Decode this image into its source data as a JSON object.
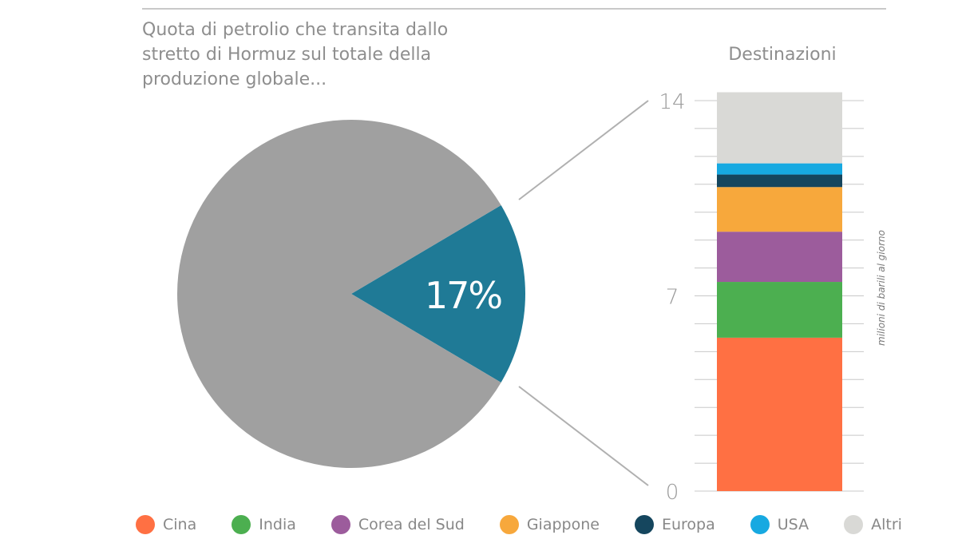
{
  "title_lines": [
    "Quota di petrolio che transita dallo",
    "stretto di Hormuz sul totale della",
    "produzione globale..."
  ],
  "destinations_title": "Destinazioni",
  "colors": {
    "pie_rest": "#a0a0a0",
    "pie_share": "#1f7a96",
    "grid": "#c8c8c8",
    "connector": "#b0b0b0"
  },
  "chart_data": [
    {
      "type": "pie",
      "slices": [
        {
          "label": "Hormuz",
          "value": 17,
          "color": "#1f7a96",
          "display": "17%"
        },
        {
          "label": "",
          "value": 83,
          "color": "#a0a0a0"
        }
      ]
    },
    {
      "type": "bar",
      "stacked": true,
      "ylabel": "milioni di barili al giorno",
      "ylim": [
        0,
        14
      ],
      "yticks": [
        0,
        7,
        14
      ],
      "grid": true,
      "series": [
        {
          "name": "Cina",
          "value": 5.5,
          "color": "#ff7043"
        },
        {
          "name": "India",
          "value": 2.0,
          "color": "#4caf50"
        },
        {
          "name": "Corea del Sud",
          "value": 1.8,
          "color": "#9c5c9c"
        },
        {
          "name": "Giappone",
          "value": 1.6,
          "color": "#f7a83c"
        },
        {
          "name": "Europa",
          "value": 0.45,
          "color": "#15465e"
        },
        {
          "name": "USA",
          "value": 0.4,
          "color": "#17a9e1"
        },
        {
          "name": "Altri",
          "value": 2.55,
          "color": "#d9d9d6"
        }
      ]
    }
  ]
}
